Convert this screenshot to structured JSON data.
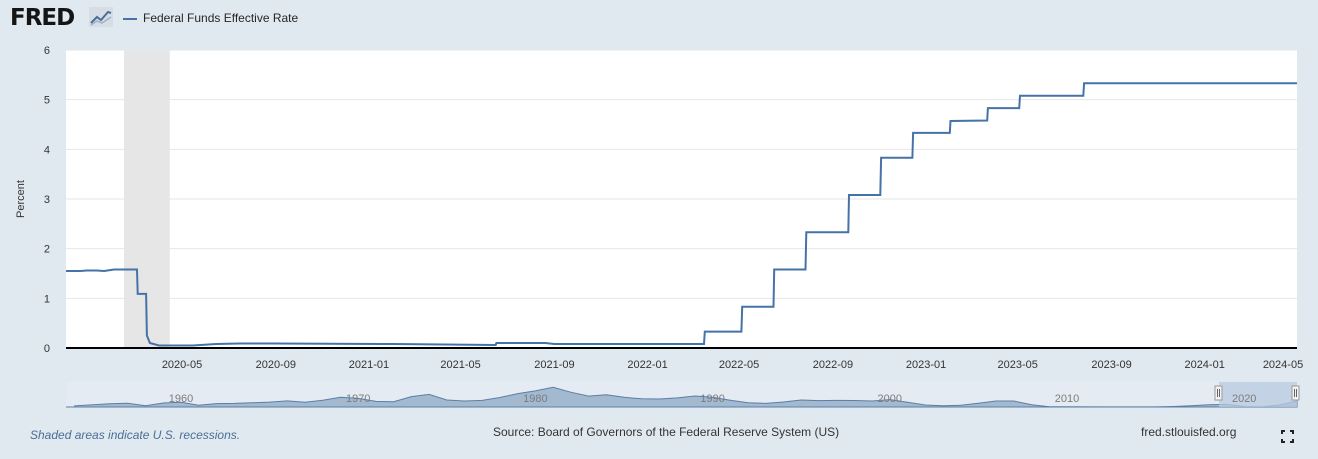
{
  "header": {
    "logo_text": "FRED",
    "legend_label": "Federal Funds Effective Rate",
    "series_color": "#4572a7"
  },
  "chart_data": {
    "type": "line",
    "title": "Federal Funds Effective Rate",
    "xlabel": "",
    "ylabel": "Percent",
    "ylim": [
      0,
      6
    ],
    "y_ticks": [
      "0",
      "1",
      "2",
      "3",
      "4",
      "5",
      "6"
    ],
    "x_range": [
      "2019-12-01",
      "2024-05-01"
    ],
    "x_ticks": [
      "2020-05",
      "2020-09",
      "2021-01",
      "2021-05",
      "2021-09",
      "2022-01",
      "2022-05",
      "2022-09",
      "2023-01",
      "2023-05",
      "2023-09",
      "2024-01",
      "2024-05"
    ],
    "grid": true,
    "recessions": [
      {
        "start": "2020-02-15",
        "end": "2020-04-15"
      }
    ],
    "series": [
      {
        "name": "Federal Funds Effective Rate",
        "points": [
          [
            "2019-12-01",
            1.55
          ],
          [
            "2019-12-20",
            1.55
          ],
          [
            "2019-12-28",
            1.56
          ],
          [
            "2020-01-10",
            1.56
          ],
          [
            "2020-01-20",
            1.55
          ],
          [
            "2020-02-02",
            1.58
          ],
          [
            "2020-02-20",
            1.58
          ],
          [
            "2020-03-03",
            1.58
          ],
          [
            "2020-03-04",
            1.09
          ],
          [
            "2020-03-15",
            1.09
          ],
          [
            "2020-03-16",
            0.25
          ],
          [
            "2020-03-20",
            0.1
          ],
          [
            "2020-04-01",
            0.05
          ],
          [
            "2020-05-15",
            0.05
          ],
          [
            "2020-06-15",
            0.08
          ],
          [
            "2020-07-15",
            0.09
          ],
          [
            "2020-09-01",
            0.09
          ],
          [
            "2021-02-01",
            0.08
          ],
          [
            "2021-06-16",
            0.06
          ],
          [
            "2021-06-17",
            0.1
          ],
          [
            "2021-08-20",
            0.1
          ],
          [
            "2021-09-01",
            0.08
          ],
          [
            "2022-03-16",
            0.08
          ],
          [
            "2022-03-17",
            0.33
          ],
          [
            "2022-05-04",
            0.33
          ],
          [
            "2022-05-05",
            0.83
          ],
          [
            "2022-06-15",
            0.83
          ],
          [
            "2022-06-16",
            1.58
          ],
          [
            "2022-07-27",
            1.58
          ],
          [
            "2022-07-28",
            2.33
          ],
          [
            "2022-09-21",
            2.33
          ],
          [
            "2022-09-22",
            3.08
          ],
          [
            "2022-11-02",
            3.08
          ],
          [
            "2022-11-03",
            3.83
          ],
          [
            "2022-12-14",
            3.83
          ],
          [
            "2022-12-15",
            4.33
          ],
          [
            "2023-02-01",
            4.33
          ],
          [
            "2023-02-02",
            4.57
          ],
          [
            "2023-03-22",
            4.58
          ],
          [
            "2023-03-23",
            4.83
          ],
          [
            "2023-05-03",
            4.83
          ],
          [
            "2023-05-04",
            5.08
          ],
          [
            "2023-07-26",
            5.08
          ],
          [
            "2023-07-27",
            5.33
          ],
          [
            "2024-05-01",
            5.33
          ]
        ]
      }
    ],
    "navigator": {
      "x_labels": [
        "1960",
        "1970",
        "1980",
        "1990",
        "2000",
        "2010",
        "2020"
      ]
    }
  },
  "footer": {
    "note": "Shaded areas indicate U.S. recessions.",
    "source": "Source: Board of Governors of the Federal Reserve System (US)",
    "site": "fred.stlouisfed.org"
  }
}
